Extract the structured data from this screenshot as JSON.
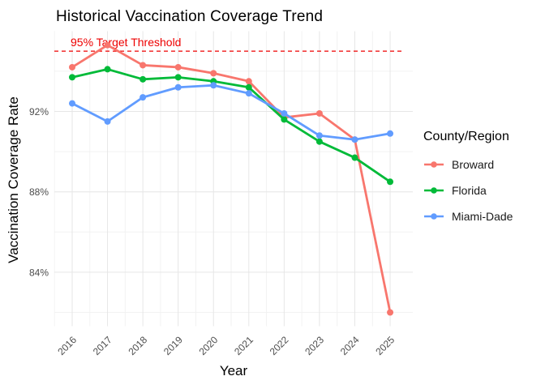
{
  "chart": {
    "title": "Historical Vaccination Coverage Trend",
    "xlabel": "Year",
    "ylabel": "Vaccination Coverage Rate",
    "legend_title": "County/Region"
  },
  "chart_data": {
    "type": "line",
    "title": "Historical Vaccination Coverage Trend",
    "xlabel": "Year",
    "ylabel": "Vaccination Coverage Rate",
    "x": [
      2016,
      2017,
      2018,
      2019,
      2020,
      2021,
      2022,
      2023,
      2024,
      2025
    ],
    "series": [
      {
        "name": "Broward",
        "color": "#F8766D",
        "values": [
          94.2,
          95.3,
          94.3,
          94.2,
          93.9,
          93.5,
          91.7,
          91.9,
          90.6,
          82.0
        ]
      },
      {
        "name": "Florida",
        "color": "#00BA38",
        "values": [
          93.7,
          94.1,
          93.6,
          93.7,
          93.5,
          93.2,
          91.6,
          90.5,
          89.7,
          88.5
        ]
      },
      {
        "name": "Miami-Dade",
        "color": "#619CFF",
        "values": [
          92.4,
          91.5,
          92.7,
          93.2,
          93.3,
          92.9,
          91.9,
          90.8,
          90.6,
          90.9
        ]
      }
    ],
    "threshold": {
      "value": 95,
      "label": "95% Target Threshold",
      "color": "#EE0000",
      "style": "dashed"
    },
    "y_ticks": [
      84,
      88,
      92
    ],
    "y_tick_labels": [
      "84%",
      "88%",
      "92%"
    ],
    "x_tick_labels": [
      "2016",
      "2017",
      "2018",
      "2019",
      "2020",
      "2021",
      "2022",
      "2023",
      "2024",
      "2025"
    ],
    "ylim": [
      81.3,
      96.0
    ],
    "grid": true,
    "legend_title": "County/Region",
    "legend_position": "right"
  }
}
